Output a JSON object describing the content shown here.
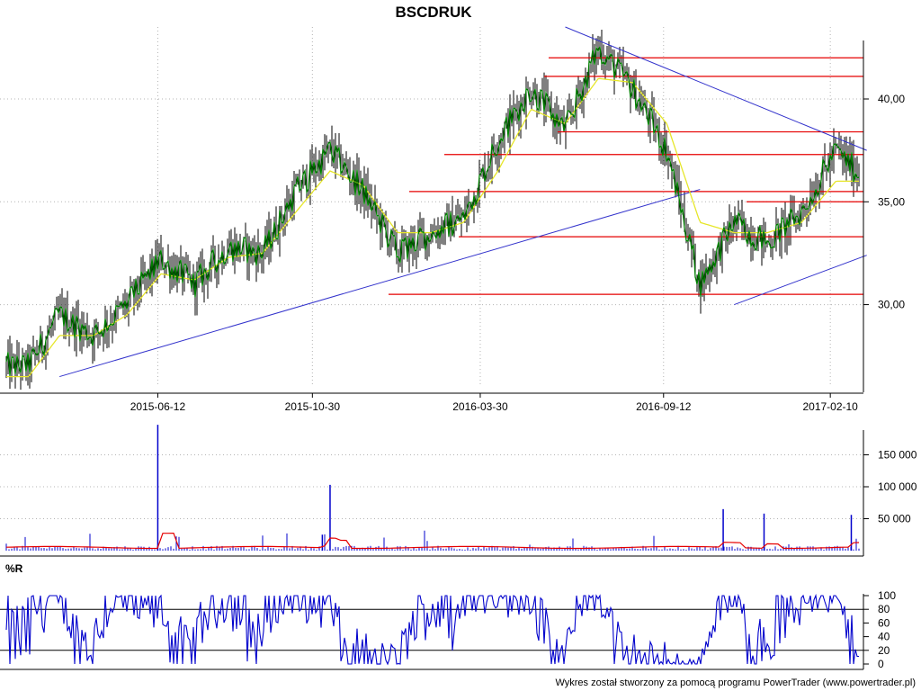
{
  "chart_data": [
    {
      "type": "ohlc",
      "title": "BSCDRUK",
      "x_tick_labels": [
        "2015-06-12",
        "2015-10-30",
        "2016-03-30",
        "2016-09-12",
        "2017-02-10"
      ],
      "y_tick_labels": [
        "30,00",
        "35,00",
        "40,00"
      ],
      "ylim": [
        26.0,
        43.5
      ],
      "grid": true,
      "series": [
        {
          "role": "close",
          "x": [
            "2015-02",
            "2015-03",
            "2015-04",
            "2015-05",
            "2015-06",
            "2015-07",
            "2015-08",
            "2015-09",
            "2015-10",
            "2015-11",
            "2015-12",
            "2016-01",
            "2016-02",
            "2016-03",
            "2016-04",
            "2016-05",
            "2016-06",
            "2016-07",
            "2016-08",
            "2016-09",
            "2016-10",
            "2016-11",
            "2016-12",
            "2017-01",
            "2017-02",
            "2017-03"
          ],
          "values": [
            27.0,
            29.5,
            28.5,
            30.0,
            32.2,
            31.0,
            32.8,
            32.5,
            35.5,
            37.5,
            35.5,
            32.5,
            33.5,
            34.2,
            38.0,
            40.5,
            38.5,
            42.5,
            40.5,
            37.5,
            31.0,
            34.0,
            33.0,
            34.5,
            37.5,
            36.0
          ]
        },
        {
          "role": "moving-average",
          "x": [
            "2015-02",
            "2015-03",
            "2015-04",
            "2015-05",
            "2015-06",
            "2015-07",
            "2015-08",
            "2015-09",
            "2015-10",
            "2015-11",
            "2015-12",
            "2016-01",
            "2016-02",
            "2016-03",
            "2016-04",
            "2016-05",
            "2016-06",
            "2016-07",
            "2016-08",
            "2016-09",
            "2016-10",
            "2016-11",
            "2016-12",
            "2017-01",
            "2017-02",
            "2017-03"
          ],
          "values": [
            26.5,
            28.5,
            28.5,
            29.5,
            31.5,
            31.2,
            32.3,
            32.5,
            34.5,
            36.5,
            35.8,
            33.5,
            33.5,
            34.0,
            36.5,
            39.5,
            38.8,
            41.0,
            40.8,
            38.8,
            34.0,
            33.5,
            33.5,
            34.0,
            36.0,
            36.0
          ]
        }
      ],
      "resistance_levels": [
        42.0,
        41.1,
        38.4,
        37.3,
        35.5,
        35.0,
        33.3,
        30.5
      ],
      "trendlines": [
        {
          "from": [
            "2015-03",
            26.5
          ],
          "to": [
            "2016-10",
            35.6
          ]
        },
        {
          "from": [
            "2016-06",
            43.5
          ],
          "to": [
            "2017-03",
            37.5
          ]
        },
        {
          "from": [
            "2016-11",
            30.0
          ],
          "to": [
            "2017-03",
            32.4
          ]
        }
      ],
      "colors": {
        "bars": "#000000",
        "close_line": "#008000",
        "moving_average": "#e6e62a",
        "levels": "#e60000",
        "trendlines": "#3333cc",
        "grid": "#b4b4b4"
      }
    },
    {
      "type": "bar",
      "role": "volume",
      "y_tick_labels": [
        "50 000",
        "100 000",
        "150 000"
      ],
      "ylim": [
        0,
        200000
      ],
      "spikes": [
        {
          "x": "2015-06-12",
          "value": 197000
        },
        {
          "x": "2015-11-15",
          "value": 103000
        },
        {
          "x": "2015-11-08",
          "value": 25000
        },
        {
          "x": "2016-11-05",
          "value": 65000
        },
        {
          "x": "2016-12-12",
          "value": 58000
        },
        {
          "x": "2017-03-01",
          "value": 56000
        }
      ],
      "colors": {
        "volume": "#0000cc",
        "average": "#e60000"
      }
    },
    {
      "type": "line",
      "title": "%R",
      "y_tick_labels": [
        "0",
        "20",
        "40",
        "60",
        "80",
        "100"
      ],
      "ylim": [
        0,
        100
      ],
      "reference_lines": [
        20,
        80
      ],
      "colors": {
        "line": "#0000cc"
      }
    }
  ],
  "footer": "Wykres został stworzony za pomocą programu PowerTrader (www.powertrader.pl)"
}
